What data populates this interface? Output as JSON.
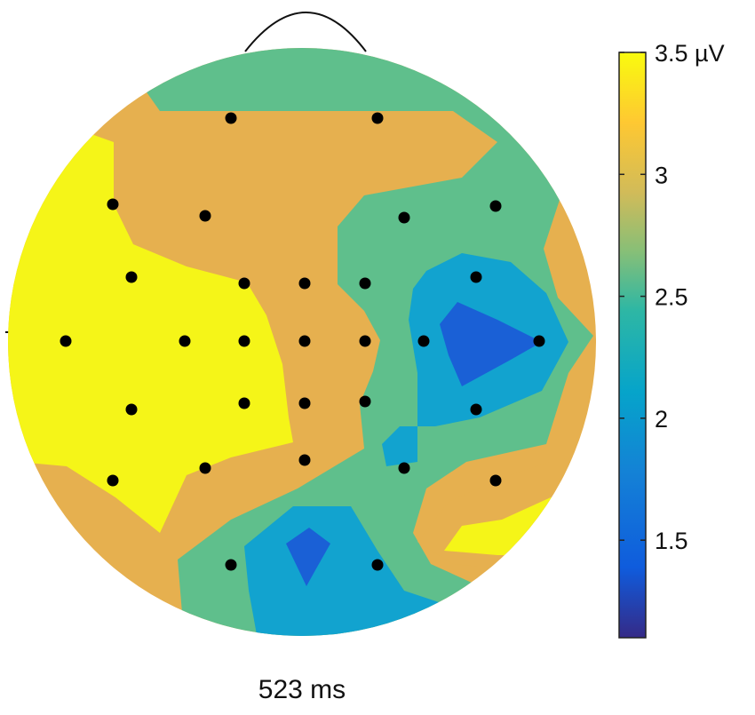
{
  "chart_data": {
    "type": "heatmap",
    "subtype": "scalp-topography",
    "time_label": "523 ms",
    "colorbar": {
      "range": [
        1.1,
        3.5
      ],
      "ticks": [
        {
          "value": 3.5,
          "label": "3.5 µV"
        },
        {
          "value": 3.0,
          "label": "3"
        },
        {
          "value": 2.5,
          "label": "2.5"
        },
        {
          "value": 2.0,
          "label": "2"
        },
        {
          "value": 1.5,
          "label": "1.5"
        }
      ],
      "colormap": "parula"
    },
    "level_colors": {
      "yellow": "#f5f518",
      "orange": "#e6b04f",
      "green": "#5fbf8c",
      "cyan": "#12a3cf",
      "blue": "#1a60d6"
    },
    "electrodes_count": 32,
    "grid": false
  }
}
